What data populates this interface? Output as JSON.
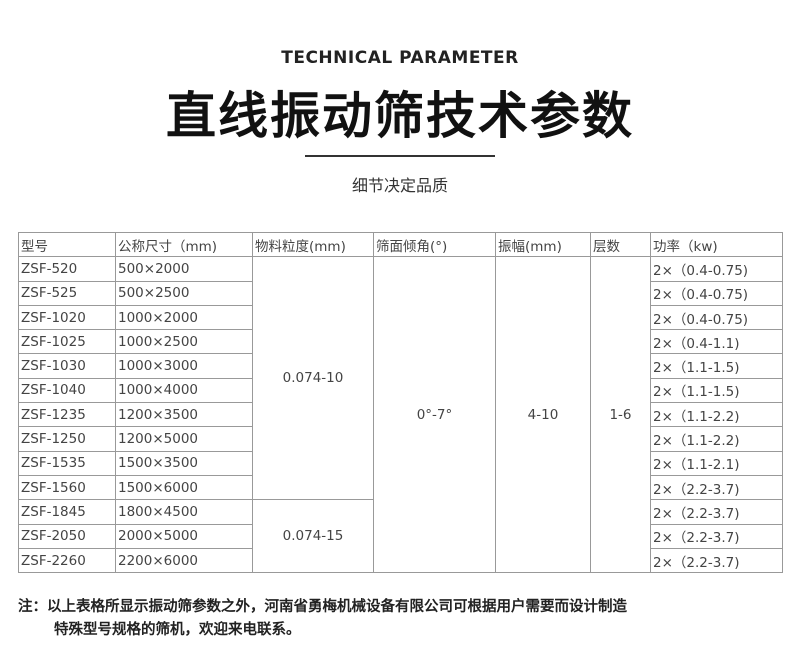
{
  "header": {
    "subtitle": "TECHNICAL PARAMETER",
    "title": "直线振动筛技术参数",
    "tagline": "细节决定品质"
  },
  "table": {
    "columns": [
      "型号",
      "公称尺寸（mm)",
      "物料粒度(mm)",
      "筛面倾角(°)",
      "振幅(mm)",
      "层数",
      "功率（kw)"
    ],
    "rows": [
      {
        "model": "ZSF-520",
        "size": "500×2000",
        "power": "2×（0.4-0.75)"
      },
      {
        "model": "ZSF-525",
        "size": "500×2500",
        "power": "2×（0.4-0.75)"
      },
      {
        "model": "ZSF-1020",
        "size": "1000×2000",
        "power": "2×（0.4-0.75)"
      },
      {
        "model": "ZSF-1025",
        "size": "1000×2500",
        "power": "2×（0.4-1.1)"
      },
      {
        "model": "ZSF-1030",
        "size": "1000×3000",
        "power": "2×（1.1-1.5)"
      },
      {
        "model": "ZSF-1040",
        "size": "1000×4000",
        "power": "2×（1.1-1.5)"
      },
      {
        "model": "ZSF-1235",
        "size": "1200×3500",
        "power": "2×（1.1-2.2)"
      },
      {
        "model": "ZSF-1250",
        "size": "1200×5000",
        "power": "2×（1.1-2.2)"
      },
      {
        "model": "ZSF-1535",
        "size": "1500×3500",
        "power": "2×（1.1-2.1)"
      },
      {
        "model": "ZSF-1560",
        "size": "1500×6000",
        "power": "2×（2.2-3.7)"
      },
      {
        "model": "ZSF-1845",
        "size": "1800×4500",
        "power": "2×（2.2-3.7)"
      },
      {
        "model": "ZSF-2050",
        "size": "2000×5000",
        "power": "2×（2.2-3.7)"
      },
      {
        "model": "ZSF-2260",
        "size": "2200×6000",
        "power": "2×（2.2-3.7)"
      }
    ],
    "granularity_a": "0.074-10",
    "granularity_b": "0.074-15",
    "angle": "0°-7°",
    "amplitude": "4-10",
    "layers": "1-6"
  },
  "note": {
    "line1": "注：以上表格所显示振动筛参数之外，河南省勇梅机械设备有限公司可根据用户需要而设计制造",
    "line2": "特殊型号规格的筛机，欢迎来电联系。"
  }
}
